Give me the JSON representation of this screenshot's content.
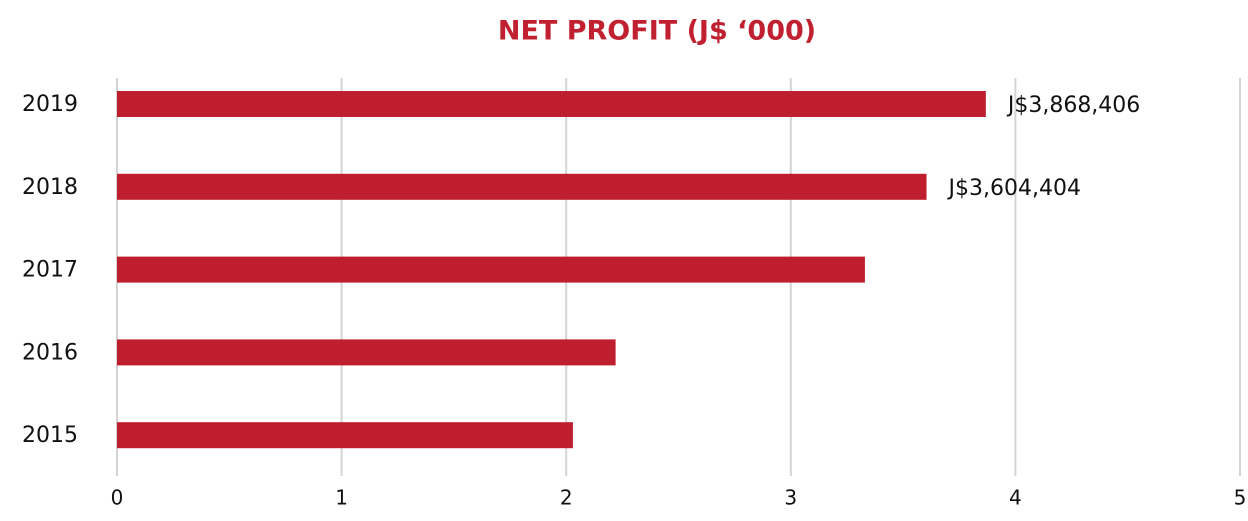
{
  "chart_data": {
    "type": "hbar",
    "title": "NET PROFIT (J$ ‘000)",
    "categories": [
      "2019",
      "2018",
      "2017",
      "2016",
      "2015"
    ],
    "values": [
      3.868406,
      3.604404,
      3.33,
      2.22,
      2.03
    ],
    "value_labels": [
      "J$3,868,406",
      "J$3,604,404",
      null,
      null,
      null
    ],
    "value_label_colors": [
      "#c0202f",
      "#111111",
      null,
      null,
      null
    ],
    "color": "#be1e2d",
    "xlim": [
      0,
      5
    ],
    "xticks": [
      0,
      1,
      2,
      3,
      4,
      5
    ],
    "grid": true
  }
}
